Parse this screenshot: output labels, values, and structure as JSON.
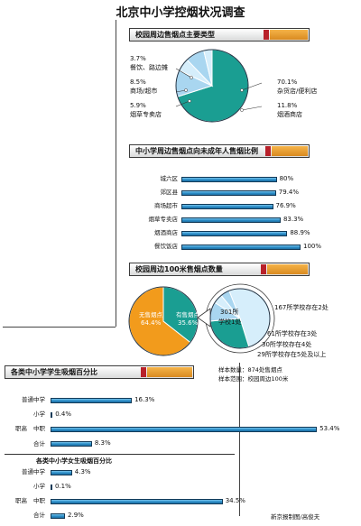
{
  "title": "北京中小学控烟状况调查",
  "sections": {
    "s1": "校园周边售烟点主要类型",
    "s2": "中小学周边售烟点向未成年人售烟比例",
    "s3": "校园周边100米售烟点数量",
    "s4": "各类中小学学生吸烟百分比",
    "s5": "各类中小学女生吸烟百分比"
  },
  "colors": {
    "teal": "#1a9e92",
    "light_blue": "#a9d6f0",
    "pale_blue": "#d6eefb",
    "orange": "#f29b1c",
    "bar_blue": "#2b8fca",
    "banner_red": "#b8212a",
    "cig_orange": "#f0a53a"
  },
  "pie1_labels": [
    {
      "pct": "3.7%",
      "name": "餐饮、路边摊"
    },
    {
      "pct": "8.5%",
      "name": "商场/超市"
    },
    {
      "pct": "5.9%",
      "name": "烟草专卖店"
    },
    {
      "pct": "70.1%",
      "name": "杂货店/便利店"
    },
    {
      "pct": "11.8%",
      "name": "烟酒商店"
    }
  ],
  "pie2_labels": {
    "none": "无售烟点",
    "none_pct": "64.4%",
    "has": "有售烟点",
    "has_pct": "35.6%"
  },
  "pie3_labels": {
    "center_a": "301所",
    "center_b": "学校1处",
    "items": [
      "167所学校存在2处",
      "61所学校存在3处",
      "30所学校存在4处",
      "29所学校存在5处及以上"
    ]
  },
  "sample": {
    "size": "样本数量：874处售烟点",
    "range": "样本范围：校园周边100米"
  },
  "school_groups": [
    "普通中学",
    "小学",
    "职高",
    "中职",
    "合计"
  ],
  "credit": "新京报制图/高俊夫",
  "chart_data": [
    {
      "type": "pie",
      "title": "校园周边售烟点主要类型",
      "categories": [
        "杂货店/便利店",
        "烟酒商店",
        "烟草专卖店",
        "商场/超市",
        "餐饮、路边摊"
      ],
      "values": [
        70.1,
        11.8,
        5.9,
        8.5,
        3.7
      ]
    },
    {
      "type": "bar",
      "title": "中小学周边售烟点向未成年人售烟比例",
      "categories": [
        "城六区",
        "郊区县",
        "商场超市",
        "烟草专卖店",
        "烟酒商店",
        "餐饮饭店"
      ],
      "values": [
        80,
        79.4,
        76.9,
        83.3,
        88.9,
        100
      ],
      "value_labels": [
        "80%",
        "79.4%",
        "76.9%",
        "83.3%",
        "88.9%",
        "100%"
      ],
      "xlim": [
        0,
        100
      ]
    },
    {
      "type": "pie",
      "title": "校园周边100米售烟点数量",
      "categories": [
        "无售烟点",
        "有售烟点"
      ],
      "values": [
        64.4,
        35.6
      ]
    },
    {
      "type": "pie",
      "categories": [
        "1处",
        "2处",
        "3处",
        "4处",
        "5处及以上"
      ],
      "values": [
        301,
        167,
        61,
        30,
        29
      ]
    },
    {
      "type": "bar",
      "title": "各类中小学学生吸烟百分比",
      "categories": [
        "普通中学",
        "小学",
        "职高中职",
        "合计"
      ],
      "values": [
        16.3,
        0.4,
        53.4,
        8.3
      ],
      "value_labels": [
        "16.3%",
        "0.4%",
        "53.4%",
        "8.3%"
      ],
      "xlim": [
        0,
        55
      ]
    },
    {
      "type": "bar",
      "title": "各类中小学女生吸烟百分比",
      "categories": [
        "普通中学",
        "小学",
        "职高中职",
        "合计"
      ],
      "values": [
        4.3,
        0.1,
        34.5,
        2.9
      ],
      "value_labels": [
        "4.3%",
        "0.1%",
        "34.5%",
        "2.9%"
      ],
      "xlim": [
        0,
        55
      ]
    }
  ]
}
